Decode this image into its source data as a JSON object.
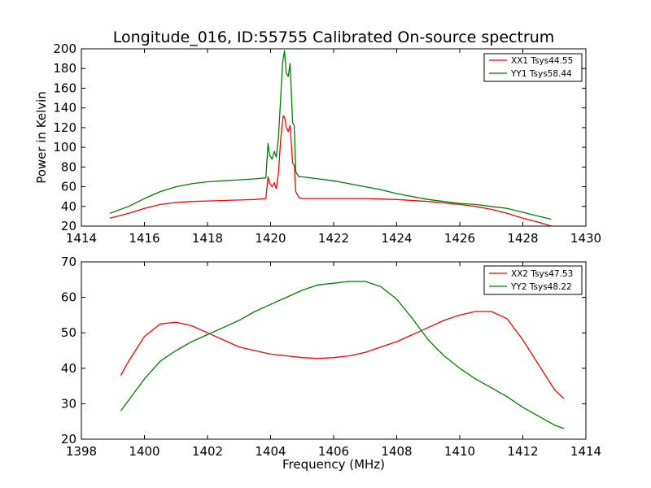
{
  "chart_data": [
    {
      "type": "line",
      "title": "Longitude_016, ID:55755 Calibrated On-source spectrum",
      "xlabel": "",
      "ylabel": "Power in Kelvin",
      "xlim": [
        1414,
        1430
      ],
      "ylim": [
        20,
        200
      ],
      "xticks": [
        "1414",
        "1416",
        "1418",
        "1420",
        "1422",
        "1424",
        "1426",
        "1428",
        "1430"
      ],
      "yticks": [
        "20",
        "40",
        "60",
        "80",
        "100",
        "120",
        "140",
        "160",
        "180",
        "200"
      ],
      "legend_position": "top-right",
      "series": [
        {
          "name": "XX1 Tsys44.55",
          "color": "#ff0000",
          "x": [
            1414.9,
            1415.5,
            1416.0,
            1416.5,
            1417.0,
            1417.5,
            1418.0,
            1418.5,
            1419.0,
            1419.5,
            1419.85,
            1419.92,
            1419.97,
            1420.05,
            1420.12,
            1420.18,
            1420.25,
            1420.32,
            1420.4,
            1420.45,
            1420.5,
            1420.56,
            1420.62,
            1420.7,
            1420.75,
            1420.8,
            1420.9,
            1421.0,
            1421.5,
            1422.0,
            1422.5,
            1423.0,
            1423.5,
            1424.0,
            1424.5,
            1425.0,
            1425.5,
            1426.0,
            1426.5,
            1427.0,
            1427.5,
            1428.0,
            1428.5,
            1428.9
          ],
          "y": [
            28,
            33,
            38,
            42,
            44,
            45,
            45.5,
            46,
            46.5,
            47,
            48,
            70,
            64,
            60,
            64,
            58,
            74,
            108,
            132,
            130,
            120,
            116,
            122,
            84,
            82,
            55,
            49,
            48,
            48,
            48,
            48,
            48,
            47.5,
            47,
            46,
            45,
            43.5,
            42,
            40,
            37,
            33,
            28,
            24,
            20
          ]
        },
        {
          "name": "YY1 Tsys58.44",
          "color": "#008000",
          "x": [
            1414.9,
            1415.5,
            1416.0,
            1416.5,
            1417.0,
            1417.5,
            1418.0,
            1418.5,
            1419.0,
            1419.5,
            1419.85,
            1419.92,
            1419.97,
            1420.05,
            1420.12,
            1420.18,
            1420.25,
            1420.32,
            1420.38,
            1420.44,
            1420.5,
            1420.56,
            1420.62,
            1420.7,
            1420.75,
            1420.8,
            1420.9,
            1421.0,
            1421.5,
            1422.0,
            1422.5,
            1423.0,
            1423.5,
            1424.0,
            1424.5,
            1425.0,
            1425.5,
            1426.0,
            1426.5,
            1427.0,
            1427.5,
            1428.0,
            1428.5,
            1428.9
          ],
          "y": [
            33,
            40,
            48,
            55,
            60,
            63,
            65,
            66,
            67,
            68,
            69,
            104,
            92,
            88,
            96,
            90,
            110,
            150,
            185,
            198,
            175,
            172,
            185,
            125,
            122,
            75,
            70,
            70,
            68,
            66,
            63,
            60,
            57,
            53,
            50,
            47,
            45,
            43,
            42,
            40,
            38,
            34,
            30,
            27
          ]
        }
      ]
    },
    {
      "type": "line",
      "title": "",
      "xlabel": "Frequency (MHz)",
      "ylabel": "",
      "xlim": [
        1398,
        1414
      ],
      "ylim": [
        20,
        70
      ],
      "xticks": [
        "1398",
        "1400",
        "1402",
        "1404",
        "1406",
        "1408",
        "1410",
        "1412",
        "1414"
      ],
      "yticks": [
        "20",
        "30",
        "40",
        "50",
        "60",
        "70"
      ],
      "legend_position": "top-right",
      "series": [
        {
          "name": "XX2 Tsys47.53",
          "color": "#ff0000",
          "x": [
            1399.25,
            1399.5,
            1400.0,
            1400.5,
            1401.0,
            1401.5,
            1402.0,
            1402.5,
            1403.0,
            1403.5,
            1404.0,
            1404.5,
            1405.0,
            1405.5,
            1406.0,
            1406.5,
            1407.0,
            1407.5,
            1408.0,
            1408.5,
            1409.0,
            1409.5,
            1410.0,
            1410.5,
            1411.0,
            1411.5,
            1412.0,
            1412.5,
            1413.0,
            1413.3
          ],
          "y": [
            38,
            42,
            49,
            52.5,
            53,
            52,
            50,
            48,
            46,
            45,
            44,
            43.5,
            43,
            42.8,
            43,
            43.5,
            44.5,
            46,
            47.5,
            49.5,
            51.5,
            53.5,
            55,
            56,
            56,
            54,
            48,
            41,
            34,
            31.5
          ]
        },
        {
          "name": "YY2 Tsys48.22",
          "color": "#008000",
          "x": [
            1399.25,
            1399.5,
            1400.0,
            1400.5,
            1401.0,
            1401.5,
            1402.0,
            1402.5,
            1403.0,
            1403.5,
            1404.0,
            1404.5,
            1405.0,
            1405.5,
            1406.0,
            1406.5,
            1407.0,
            1407.5,
            1408.0,
            1408.5,
            1409.0,
            1409.5,
            1410.0,
            1410.5,
            1411.0,
            1411.5,
            1412.0,
            1412.5,
            1413.0,
            1413.3
          ],
          "y": [
            28,
            31,
            37,
            42,
            45,
            47.5,
            49.5,
            51.5,
            53.5,
            56,
            58,
            60,
            62,
            63.5,
            64,
            64.5,
            64.5,
            63,
            59.5,
            54,
            48,
            43.5,
            40,
            37,
            34.5,
            32,
            29,
            26.5,
            24,
            23
          ]
        }
      ]
    }
  ]
}
